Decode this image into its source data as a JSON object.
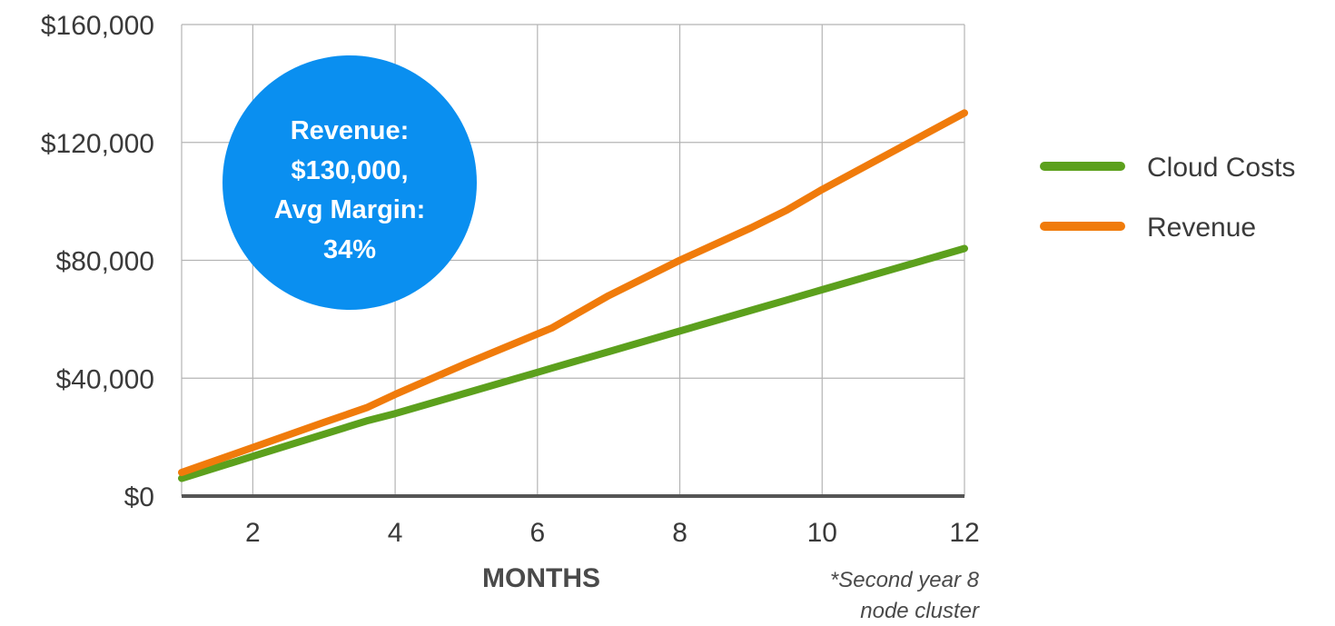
{
  "chart_data": {
    "type": "line",
    "x": [
      1,
      2,
      3,
      3.6,
      4,
      5,
      6,
      6.2,
      7,
      8,
      9,
      9.5,
      10,
      11,
      12
    ],
    "series": [
      {
        "name": "Cloud Costs",
        "color": "#5ca01d",
        "values": [
          6000,
          13500,
          21000,
          25500,
          28000,
          35000,
          42000,
          43400,
          49000,
          56000,
          63000,
          66500,
          70000,
          77000,
          84000
        ]
      },
      {
        "name": "Revenue",
        "color": "#f07b0b",
        "values": [
          8000,
          16500,
          25000,
          30000,
          34500,
          45000,
          55000,
          57000,
          68000,
          80000,
          91000,
          97000,
          104000,
          117000,
          130000
        ]
      }
    ],
    "xlabel": "MONTHS",
    "ylabel": "",
    "xticks": [
      2,
      4,
      6,
      8,
      10,
      12
    ],
    "xlim": [
      1,
      12
    ],
    "yticks": [
      "$0",
      "$40,000",
      "$80,000",
      "$120,000",
      "$160,000"
    ],
    "ytick_values": [
      0,
      40000,
      80000,
      120000,
      160000
    ],
    "ylim": [
      0,
      160000
    ],
    "grid": true,
    "legend_position": "right",
    "annotation": {
      "lines": [
        "Revenue:",
        "$130,000,",
        "Avg Margin:",
        "34%"
      ],
      "color": "#0a8ff0"
    },
    "footnote": [
      "*Second year 8",
      "node cluster"
    ]
  }
}
